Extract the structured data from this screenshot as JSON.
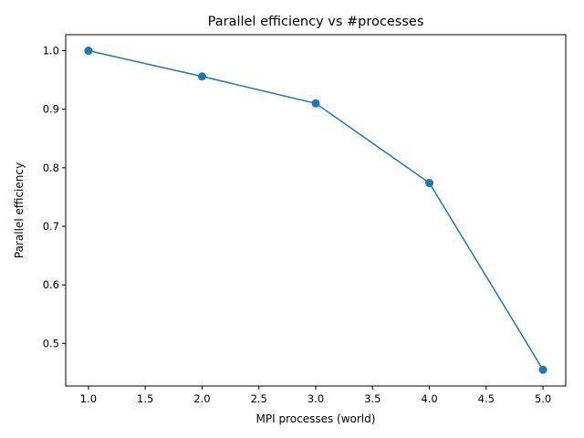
{
  "chart_data": {
    "type": "line",
    "title": "Parallel efficiency vs #processes",
    "xlabel": "MPI processes (world)",
    "ylabel": "Parallel efficiency",
    "x": [
      1,
      2,
      3,
      4,
      5
    ],
    "series": [
      {
        "values": [
          1.0,
          0.956,
          0.91,
          0.774,
          0.455
        ],
        "color": "#1f77b4",
        "marker": "circle"
      }
    ],
    "xlim": [
      0.8,
      5.2
    ],
    "ylim": [
      0.4273,
      1.0273
    ],
    "xticks": [
      1.0,
      1.5,
      2.0,
      2.5,
      3.0,
      3.5,
      4.0,
      4.5,
      5.0
    ],
    "xtick_labels": [
      "1.0",
      "1.5",
      "2.0",
      "2.5",
      "3.0",
      "3.5",
      "4.0",
      "4.5",
      "5.0"
    ],
    "yticks": [
      0.5,
      0.6,
      0.7,
      0.8,
      0.9,
      1.0
    ],
    "ytick_labels": [
      "0.5",
      "0.6",
      "0.7",
      "0.8",
      "0.9",
      "1.0"
    ],
    "grid": false,
    "legend": "none"
  }
}
